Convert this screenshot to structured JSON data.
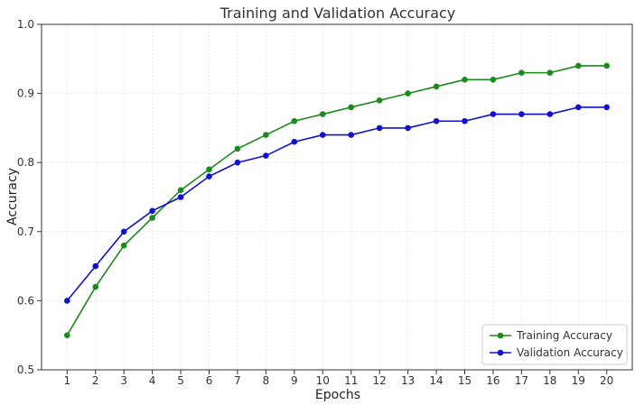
{
  "chart_data": {
    "type": "line",
    "title": "Training and Validation Accuracy",
    "xlabel": "Epochs",
    "ylabel": "Accuracy",
    "x": [
      1,
      2,
      3,
      4,
      5,
      6,
      7,
      8,
      9,
      10,
      11,
      12,
      13,
      14,
      15,
      16,
      17,
      18,
      19,
      20
    ],
    "xlim": [
      0.1,
      20.9
    ],
    "ylim": [
      0.5,
      1.0
    ],
    "yticks": [
      "0.5",
      "0.6",
      "0.7",
      "0.8",
      "0.9",
      "1.0"
    ],
    "grid": true,
    "legend_position": "lower-right",
    "series": [
      {
        "name": "Training Accuracy",
        "color": "#1a8a1a",
        "marker": "circle",
        "values": [
          0.55,
          0.62,
          0.68,
          0.72,
          0.76,
          0.79,
          0.82,
          0.84,
          0.86,
          0.87,
          0.88,
          0.89,
          0.9,
          0.91,
          0.92,
          0.92,
          0.93,
          0.93,
          0.94,
          0.94
        ]
      },
      {
        "name": "Validation Accuracy",
        "color": "#1010d0",
        "marker": "circle",
        "values": [
          0.6,
          0.65,
          0.7,
          0.73,
          0.75,
          0.78,
          0.8,
          0.81,
          0.83,
          0.84,
          0.84,
          0.85,
          0.85,
          0.86,
          0.86,
          0.87,
          0.87,
          0.87,
          0.88,
          0.88
        ]
      }
    ]
  }
}
